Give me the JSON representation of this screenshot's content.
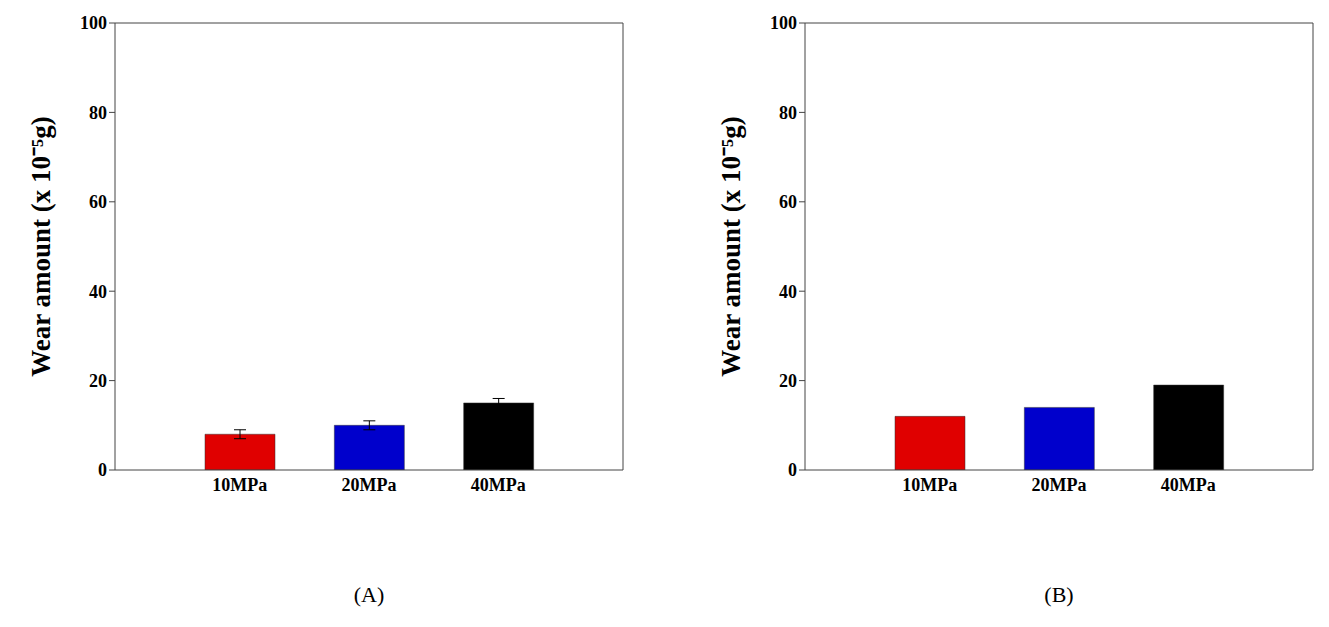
{
  "chart_data": [
    {
      "type": "bar",
      "title": "(A)",
      "y_label": "Wear amount (x 10⁻⁵g)",
      "categories": [
        "10MPa",
        "20MPa",
        "40MPa"
      ],
      "values": [
        8,
        10,
        15
      ],
      "errors": [
        1,
        1,
        1
      ],
      "colors": [
        "#e00000",
        "#0000cc",
        "#000000"
      ],
      "ylim": [
        0,
        100
      ],
      "yticks": [
        0,
        20,
        40,
        60,
        80,
        100
      ],
      "grid": false
    },
    {
      "type": "bar",
      "title": "(B)",
      "y_label": "Wear amount (x 10⁻⁵g)",
      "categories": [
        "10MPa",
        "20MPa",
        "40MPa"
      ],
      "values": [
        12,
        14,
        19
      ],
      "colors": [
        "#e00000",
        "#0000cc",
        "#000000"
      ],
      "ylim": [
        0,
        100
      ],
      "yticks": [
        0,
        20,
        40,
        60,
        80,
        100
      ],
      "grid": false
    }
  ]
}
